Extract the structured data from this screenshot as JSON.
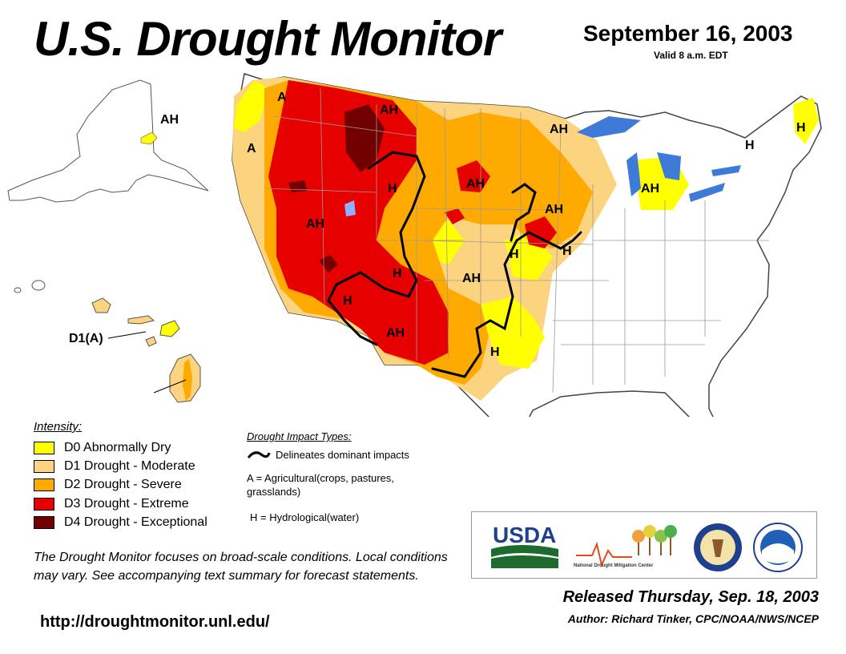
{
  "header": {
    "title": "U.S. Drought Monitor",
    "date": "September 16, 2003",
    "valid": "Valid 8 a.m. EDT"
  },
  "legend": {
    "title": "Intensity:",
    "items": [
      {
        "label": "D0 Abnormally Dry",
        "color": "#FFFF00"
      },
      {
        "label": "D1 Drought - Moderate",
        "color": "#FCD37F"
      },
      {
        "label": "D2 Drought - Severe",
        "color": "#FFAA00"
      },
      {
        "label": "D3 Drought - Extreme",
        "color": "#E60000"
      },
      {
        "label": "D4 Drought - Exceptional",
        "color": "#730000"
      }
    ]
  },
  "impact_types": {
    "title": "Drought Impact Types:",
    "line_label": "Delineates dominant impacts",
    "a_def": "A = Agricultural(crops, pastures, grasslands)",
    "h_def": "H = Hydrological(water)"
  },
  "map_labels": {
    "ah": "AH",
    "a": "A",
    "h": "H",
    "hawaii": "D1(A)"
  },
  "note": "The Drought Monitor focuses on broad-scale conditions. Local conditions may vary. See accompanying text summary for forecast statements.",
  "url": "http://droughtmonitor.unl.edu/",
  "logos": {
    "usda": "USDA",
    "ndmc": "National Drought Mitigation Center"
  },
  "footer": {
    "released": "Released Thursday, Sep. 18, 2003",
    "author": "Author: Richard Tinker, CPC/NOAA/NWS/NCEP"
  },
  "colors": {
    "water": "#3E7BD8",
    "boundary": "#9A9A9A"
  }
}
